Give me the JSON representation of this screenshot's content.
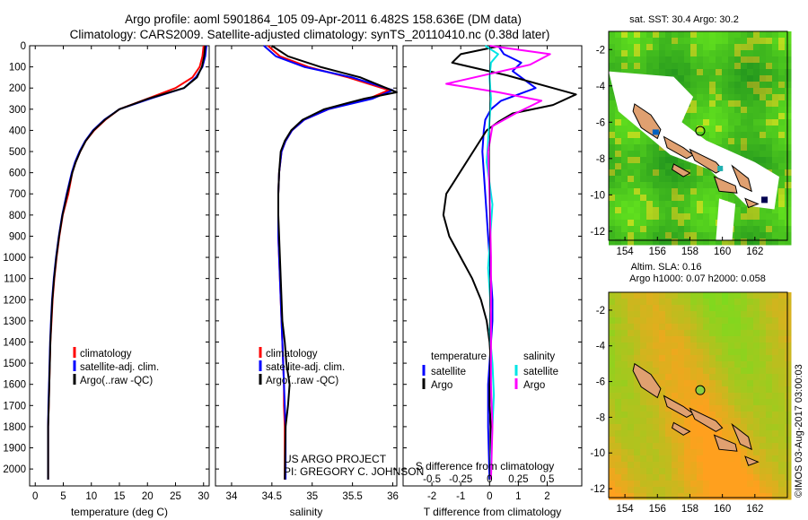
{
  "header": {
    "line1": "Argo profile: aoml 5901864_105 09-Apr-2011 6.482S 158.636E (DM data)",
    "line2": "Climatology: CARS2009. Satellite-adjusted climatology: synTS_20110410.nc (0.38d later)"
  },
  "project": {
    "line1": "US ARGO PROJECT",
    "line2": "PI: GREGORY C. JOHNSON"
  },
  "watermark": "©IMOS 03-Aug-2017 03:00:03",
  "colors": {
    "climatology": "#ff0000",
    "satellite": "#0000ff",
    "argo": "#000000",
    "sal_sat": "#00e5e5",
    "sal_argo": "#ff00ff"
  },
  "chart_data": [
    {
      "id": "temperature",
      "type": "line",
      "title": "",
      "xlabel": "temperature (deg C)",
      "ylabel": "",
      "xlim": [
        -1,
        31
      ],
      "ylim": [
        2080,
        0
      ],
      "xticks": [
        0,
        5,
        10,
        15,
        20,
        25,
        30
      ],
      "yticks": [
        0,
        100,
        200,
        300,
        400,
        500,
        600,
        700,
        800,
        900,
        1000,
        1100,
        1200,
        1300,
        1400,
        1500,
        1600,
        1700,
        1800,
        1900,
        2000
      ],
      "legend": [
        "climatology",
        "satellite-adj. clim.",
        "Argo(..raw -QC)"
      ],
      "legend_position": "lower-middle",
      "series": [
        {
          "name": "climatology",
          "color": "#ff0000",
          "x": [
            30,
            29.8,
            29.3,
            28,
            25,
            20,
            15,
            12.5,
            10.5,
            9,
            8,
            7.2,
            6.6,
            5.9,
            4.9,
            4.3,
            3.8,
            3.4,
            3.1,
            2.9,
            2.7,
            2.6,
            2.5,
            2.4,
            2.3,
            2.3
          ],
          "y": [
            0,
            50,
            100,
            150,
            200,
            250,
            300,
            350,
            400,
            450,
            500,
            550,
            600,
            700,
            800,
            900,
            1000,
            1100,
            1200,
            1300,
            1400,
            1500,
            1600,
            1700,
            1800,
            2050
          ]
        },
        {
          "name": "satellite-adj. clim.",
          "color": "#0000ff",
          "x": [
            30.5,
            30.3,
            29.8,
            28.6,
            26.5,
            20.5,
            15,
            12.3,
            10.3,
            8.9,
            7.9,
            7.1,
            6.5,
            5.6,
            4.8,
            4.2,
            3.7,
            3.3,
            3.0,
            2.8,
            2.65,
            2.55,
            2.45,
            2.35,
            2.3,
            2.3
          ],
          "y": [
            0,
            50,
            100,
            150,
            200,
            250,
            300,
            350,
            400,
            450,
            500,
            550,
            600,
            700,
            800,
            900,
            1000,
            1100,
            1200,
            1300,
            1400,
            1500,
            1600,
            1700,
            1800,
            2050
          ]
        },
        {
          "name": "Argo(..raw -QC)",
          "color": "#000000",
          "x": [
            30.3,
            30.1,
            29.7,
            28.8,
            26.5,
            20.2,
            15,
            12.4,
            10.4,
            9,
            8,
            7.2,
            6.6,
            5.7,
            4.85,
            4.25,
            3.75,
            3.35,
            3.05,
            2.85,
            2.7,
            2.6,
            2.5,
            2.4,
            2.3,
            2.3
          ],
          "y": [
            0,
            50,
            100,
            150,
            200,
            250,
            300,
            350,
            400,
            450,
            500,
            550,
            600,
            700,
            800,
            900,
            1000,
            1100,
            1200,
            1300,
            1400,
            1500,
            1600,
            1700,
            1800,
            2050
          ]
        }
      ]
    },
    {
      "id": "salinity",
      "type": "line",
      "xlabel": "salinity",
      "xlim": [
        33.8,
        36.05
      ],
      "ylim": [
        2080,
        0
      ],
      "xticks": [
        34,
        34.5,
        35,
        35.5,
        36
      ],
      "legend": [
        "climatology",
        "satellite-adj. clim.",
        "Argo(..raw -QC)"
      ],
      "legend_position": "lower-middle",
      "series": [
        {
          "name": "climatology",
          "color": "#ff0000",
          "x": [
            34.45,
            34.6,
            34.95,
            35.45,
            35.95,
            35.7,
            35.2,
            34.9,
            34.75,
            34.67,
            34.62,
            34.59,
            34.58,
            34.58,
            34.58,
            34.59,
            34.6,
            34.61,
            34.62,
            34.63,
            34.64,
            34.65,
            34.65,
            34.66,
            34.66
          ],
          "y": [
            0,
            50,
            100,
            150,
            210,
            250,
            300,
            350,
            400,
            450,
            500,
            600,
            700,
            800,
            900,
            1000,
            1100,
            1200,
            1300,
            1400,
            1500,
            1600,
            1700,
            1800,
            2050
          ]
        },
        {
          "name": "satellite-adj. clim.",
          "color": "#0000ff",
          "x": [
            34.4,
            34.55,
            34.9,
            35.5,
            36.0,
            35.75,
            35.2,
            34.9,
            34.75,
            34.67,
            34.62,
            34.59,
            34.58,
            34.58,
            34.58,
            34.59,
            34.6,
            34.61,
            34.62,
            34.63,
            34.64,
            34.65,
            34.66,
            34.67,
            34.67
          ],
          "y": [
            0,
            50,
            100,
            150,
            210,
            250,
            300,
            350,
            400,
            450,
            500,
            600,
            700,
            800,
            900,
            1000,
            1100,
            1200,
            1300,
            1400,
            1500,
            1600,
            1700,
            1800,
            2050
          ]
        },
        {
          "name": "Argo(..raw -QC)",
          "color": "#000000",
          "x": [
            34.5,
            34.7,
            35.1,
            35.6,
            36.05,
            35.65,
            35.15,
            34.88,
            34.74,
            34.66,
            34.61,
            34.59,
            34.58,
            34.58,
            34.59,
            34.6,
            34.61,
            34.62,
            34.63,
            34.66,
            34.68,
            34.72,
            34.7,
            34.67,
            34.66
          ],
          "y": [
            0,
            50,
            100,
            150,
            220,
            250,
            300,
            350,
            400,
            450,
            500,
            600,
            700,
            800,
            900,
            1000,
            1100,
            1200,
            1300,
            1400,
            1500,
            1600,
            1700,
            1800,
            2050
          ]
        }
      ]
    },
    {
      "id": "difference",
      "type": "line",
      "xlabel": "T difference from climatology",
      "xlabel_top": "S difference from climatology",
      "xlim": [
        -3,
        3.2
      ],
      "ylim": [
        2080,
        0
      ],
      "xticks": [
        -2,
        -1,
        0,
        1,
        2
      ],
      "xticks_s": [
        "-0.5",
        "-0.25",
        "0",
        "0.25",
        "0.5"
      ],
      "legend_headers": [
        "temperature",
        "salinity"
      ],
      "legend": [
        "satellite",
        "Argo",
        "satellite",
        "Argo"
      ],
      "legend_position": "lower-middle",
      "series": [
        {
          "name": "temperature satellite",
          "color": "#0000ff",
          "x": [
            0.3,
            0.5,
            1.1,
            0.8,
            1.6,
            0.4,
            0.05,
            -0.15,
            -0.2,
            -0.25,
            -0.2,
            -0.15,
            -0.1,
            -0.05,
            0.0,
            0.05,
            0.1,
            0.1,
            0.05,
            0.0,
            -0.05,
            -0.05,
            0.0
          ],
          "y": [
            0,
            40,
            80,
            120,
            200,
            260,
            300,
            350,
            400,
            500,
            600,
            700,
            800,
            900,
            1000,
            1100,
            1200,
            1300,
            1400,
            1500,
            1600,
            1800,
            2050
          ]
        },
        {
          "name": "temperature Argo",
          "color": "#000000",
          "x": [
            0.4,
            -1.0,
            -1.3,
            0.6,
            3.0,
            2.2,
            0.8,
            0.3,
            -0.1,
            -1.5,
            -1.6,
            -1.4,
            -1.0,
            -0.6,
            -0.3,
            -0.1,
            0.0,
            0.05,
            0.0,
            0.0,
            0.05,
            0.05,
            0.05
          ],
          "y": [
            0,
            40,
            80,
            140,
            230,
            280,
            320,
            360,
            400,
            700,
            800,
            900,
            1000,
            1100,
            1200,
            1300,
            1400,
            1500,
            1600,
            1700,
            1800,
            1900,
            2050
          ]
        },
        {
          "name": "salinity satellite",
          "color": "#00e5e5",
          "x": [
            -0.15,
            0.3,
            0.05,
            0.0,
            0.05,
            0.0,
            -0.05,
            -0.1,
            0.0,
            0.1,
            0.05,
            0.0,
            -0.05,
            0.0,
            0.05,
            0.0,
            0.1,
            0.15,
            0.1,
            0.05,
            0.05
          ],
          "y": [
            0,
            40,
            80,
            150,
            250,
            350,
            450,
            550,
            650,
            750,
            850,
            950,
            1050,
            1150,
            1250,
            1350,
            1500,
            1650,
            1800,
            1950,
            2050
          ]
        },
        {
          "name": "salinity Argo",
          "color": "#ff00ff",
          "x": [
            0.0,
            2.1,
            1.4,
            -1.5,
            0.3,
            1.8,
            0.9,
            0.1,
            -0.05,
            0.0,
            0.05,
            0.05,
            0.05,
            0.1,
            0.05
          ],
          "y": [
            0,
            40,
            90,
            180,
            220,
            260,
            320,
            380,
            500,
            700,
            1000,
            1300,
            1600,
            1800,
            2050
          ]
        }
      ]
    },
    {
      "id": "sst_map",
      "type": "heatmap",
      "title": "sat. SST: 30.4 Argo: 30.2",
      "xlim": [
        153,
        164
      ],
      "ylim": [
        -12.5,
        -1
      ],
      "xticks": [
        154,
        156,
        158,
        160,
        162
      ],
      "yticks": [
        -2,
        -4,
        -6,
        -8,
        -10,
        -12
      ],
      "argo_position": [
        158.636,
        -6.482
      ]
    },
    {
      "id": "sla_map",
      "type": "heatmap",
      "title_line1": "Altim. SLA: 0.16",
      "title_line2": "Argo h1000: 0.07 h2000: 0.058",
      "xlim": [
        153,
        164
      ],
      "ylim": [
        -12.5,
        -1
      ],
      "xticks": [
        154,
        156,
        158,
        160,
        162
      ],
      "yticks": [
        -2,
        -4,
        -6,
        -8,
        -10,
        -12
      ],
      "argo_position": [
        158.636,
        -6.482
      ]
    }
  ]
}
